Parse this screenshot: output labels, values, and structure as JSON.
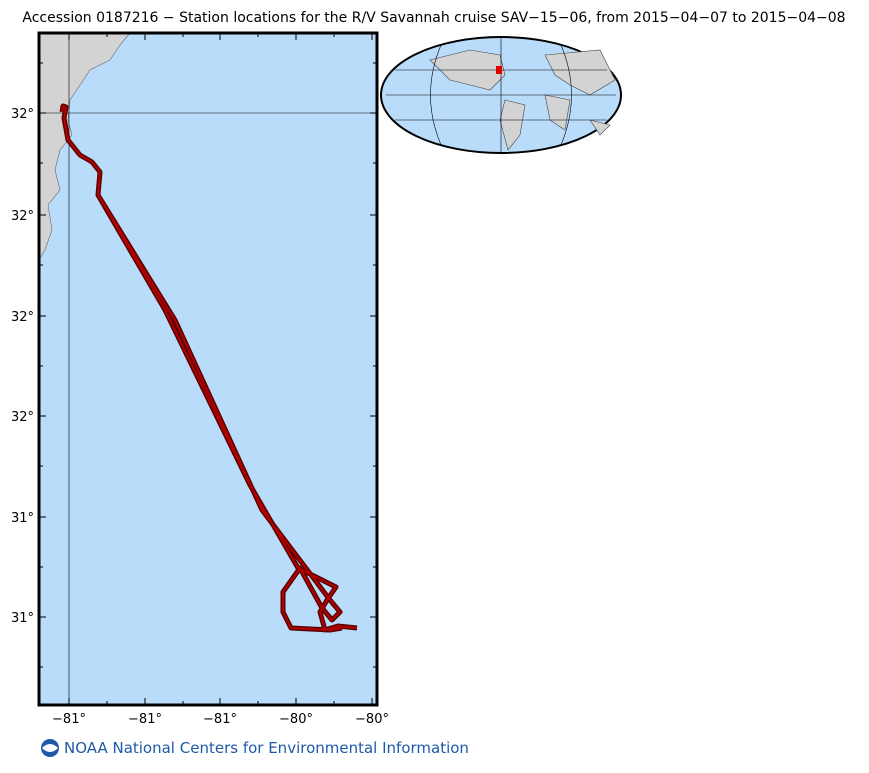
{
  "title": "Accession 0187216 − Station locations for the R/V Savannah cruise SAV−15−06, from 2015−04−07 to 2015−04−08",
  "map": {
    "y_labels": [
      "32°",
      "32°",
      "32°",
      "32°",
      "31°",
      "31°"
    ],
    "x_labels": [
      "−81°",
      "−81°",
      "−81°",
      "−80°",
      "−80°"
    ]
  },
  "footer": {
    "text": "NOAA National Centers for Environmental Information"
  }
}
